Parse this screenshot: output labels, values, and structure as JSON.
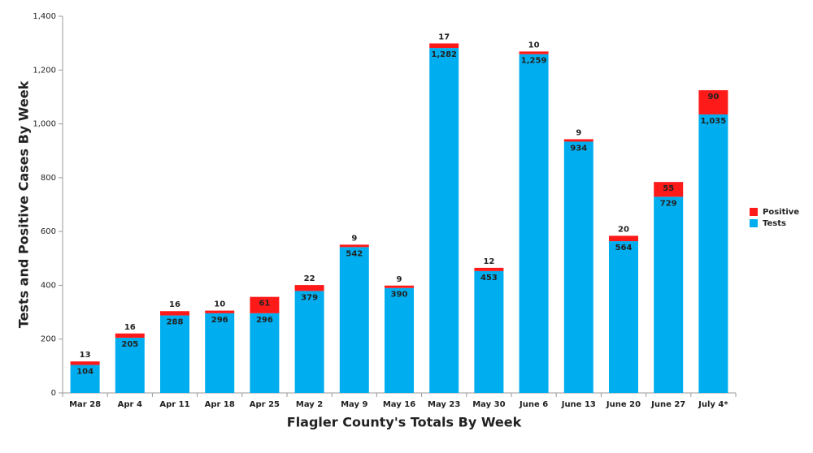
{
  "chart_data": {
    "type": "stacked_bar",
    "x_label": "Flagler County's Totals By Week",
    "y_label": "Tests and Positive Cases By Week",
    "categories": [
      "Mar 28",
      "Apr 4",
      "Apr 11",
      "Apr 18",
      "Apr 25",
      "May 2",
      "May 9",
      "May 16",
      "May 23",
      "May 30",
      "June 6",
      "June 13",
      "June 20",
      "June 27",
      "July 4*"
    ],
    "series": [
      {
        "name": "Tests",
        "color": "#00aeef",
        "values": [
          104,
          205,
          288,
          296,
          296,
          379,
          542,
          390,
          1282,
          453,
          1259,
          934,
          564,
          729,
          1035
        ],
        "value_labels": [
          "104",
          "205",
          "288",
          "296",
          "296",
          "379",
          "542",
          "390",
          "1,282",
          "453",
          "1,259",
          "934",
          "564",
          "729",
          "1,035"
        ]
      },
      {
        "name": "Positive",
        "color": "#ff1a1a",
        "values": [
          13,
          16,
          16,
          10,
          61,
          22,
          9,
          9,
          17,
          12,
          10,
          9,
          20,
          55,
          90
        ]
      }
    ],
    "ylim": [
      0,
      1400
    ],
    "yticks": [
      0,
      200,
      400,
      600,
      800,
      {
        "value": 1000,
        "label": "1,000"
      },
      {
        "value": 1200,
        "label": "1,200"
      },
      {
        "value": 1400,
        "label": "1,400"
      }
    ],
    "grid": false,
    "legend": "right"
  }
}
